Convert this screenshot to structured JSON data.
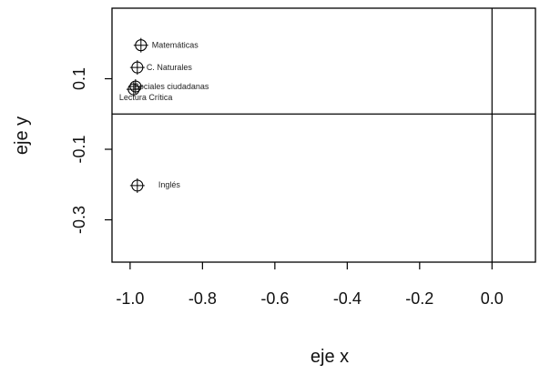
{
  "chart_data": {
    "type": "scatter",
    "xlabel": "eje x",
    "ylabel": "eje y",
    "xlim": [
      -1.05,
      0.12
    ],
    "ylim": [
      -0.42,
      0.3
    ],
    "xticks": [
      "-1.0",
      "-0.8",
      "-0.6",
      "-0.4",
      "-0.2",
      "0.0"
    ],
    "xtick_values": [
      -1.0,
      -0.8,
      -0.6,
      -0.4,
      -0.2,
      0.0
    ],
    "yticks": [
      "-0.3",
      "-0.1",
      "0.1"
    ],
    "ytick_values": [
      -0.3,
      -0.1,
      0.1
    ],
    "reference_lines": {
      "x": 0,
      "y": 0
    },
    "points": [
      {
        "label": "Matemáticas",
        "x": -0.97,
        "y": 0.195
      },
      {
        "label": "C. Naturales",
        "x": -0.98,
        "y": 0.132
      },
      {
        "label": "Sociales ciudadanas",
        "x": -0.985,
        "y": 0.078
      },
      {
        "label": "Lectura Crítica",
        "x": -0.99,
        "y": 0.07
      },
      {
        "label": "Inglés",
        "x": -0.98,
        "y": -0.203
      }
    ]
  }
}
